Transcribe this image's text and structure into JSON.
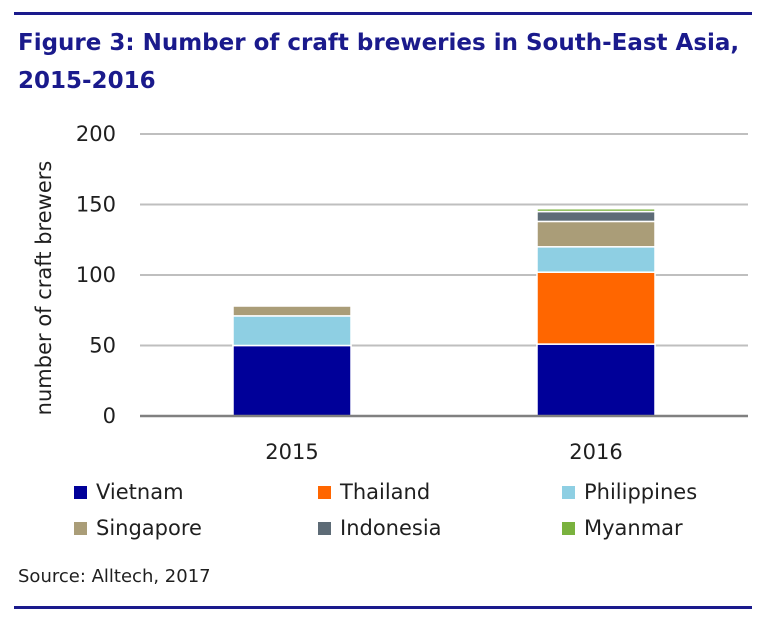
{
  "title": "Figure 3: Number of craft breweries in South-East Asia, 2015-2016",
  "source": "Source: Alltech, 2017",
  "colors": {
    "rule": "#1a1a8c",
    "title": "#1a1a8c",
    "grid": "#bfbfbf",
    "axis": "#808080"
  },
  "chart_data": {
    "type": "bar",
    "stacked": true,
    "title": "Figure 3: Number of craft breweries in South-East Asia, 2015-2016",
    "xlabel": "",
    "ylabel": "number of craft brewers",
    "ylim": [
      0,
      200
    ],
    "yticks": [
      0,
      50,
      100,
      150,
      200
    ],
    "categories": [
      "2015",
      "2016"
    ],
    "grid": true,
    "legend": "bottom",
    "series": [
      {
        "name": "Vietnam",
        "color": "#000099",
        "values": [
          50,
          51
        ]
      },
      {
        "name": "Thailand",
        "color": "#ff6600",
        "values": [
          0,
          51
        ]
      },
      {
        "name": "Philippines",
        "color": "#8ecfe3",
        "values": [
          21,
          18
        ]
      },
      {
        "name": "Singapore",
        "color": "#aa9d78",
        "values": [
          7,
          18
        ]
      },
      {
        "name": "Indonesia",
        "color": "#5d6b76",
        "values": [
          0,
          7
        ]
      },
      {
        "name": "Myanmar",
        "color": "#7ab23e",
        "values": [
          0,
          2
        ]
      }
    ]
  }
}
